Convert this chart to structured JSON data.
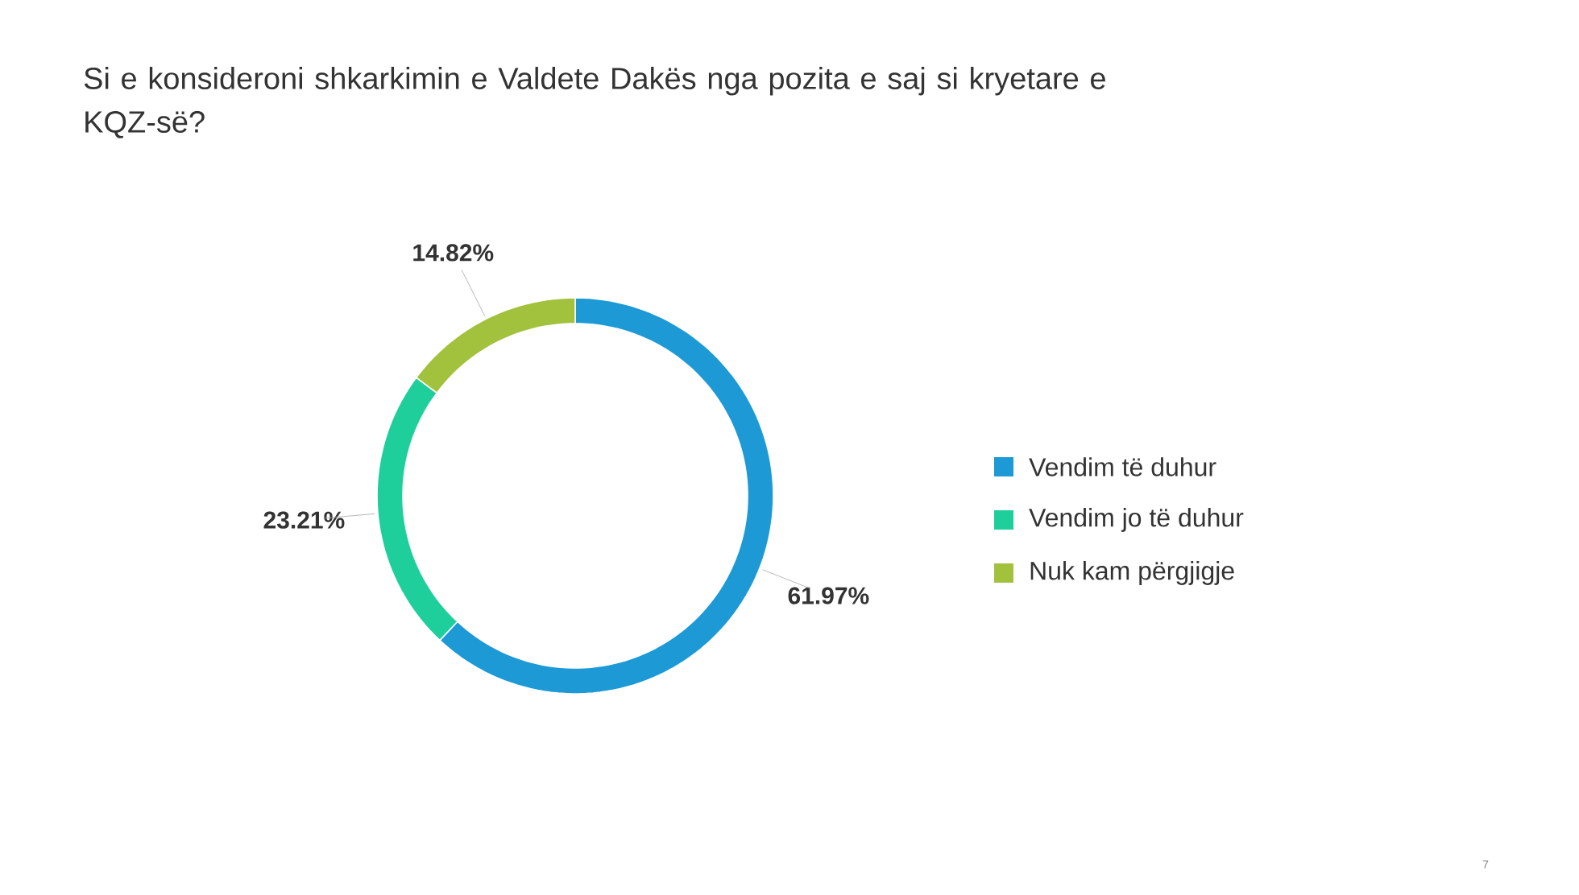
{
  "chart_data": {
    "type": "donut",
    "title": "Si e konsideroni shkarkimin e Valdete Dakës nga pozita e saj si kryetare e KQZ-së?",
    "categories": [
      "Vendim të duhur",
      "Vendim jo të duhur",
      "Nuk kam përgjigje"
    ],
    "values": [
      61.97,
      23.21,
      14.82
    ],
    "value_labels": [
      "61.97%",
      "23.21%",
      "14.82%"
    ],
    "colors": [
      "#1d9ad6",
      "#1ecf9c",
      "#a2c23e"
    ],
    "legend": "right",
    "annotations": [
      "7"
    ]
  }
}
